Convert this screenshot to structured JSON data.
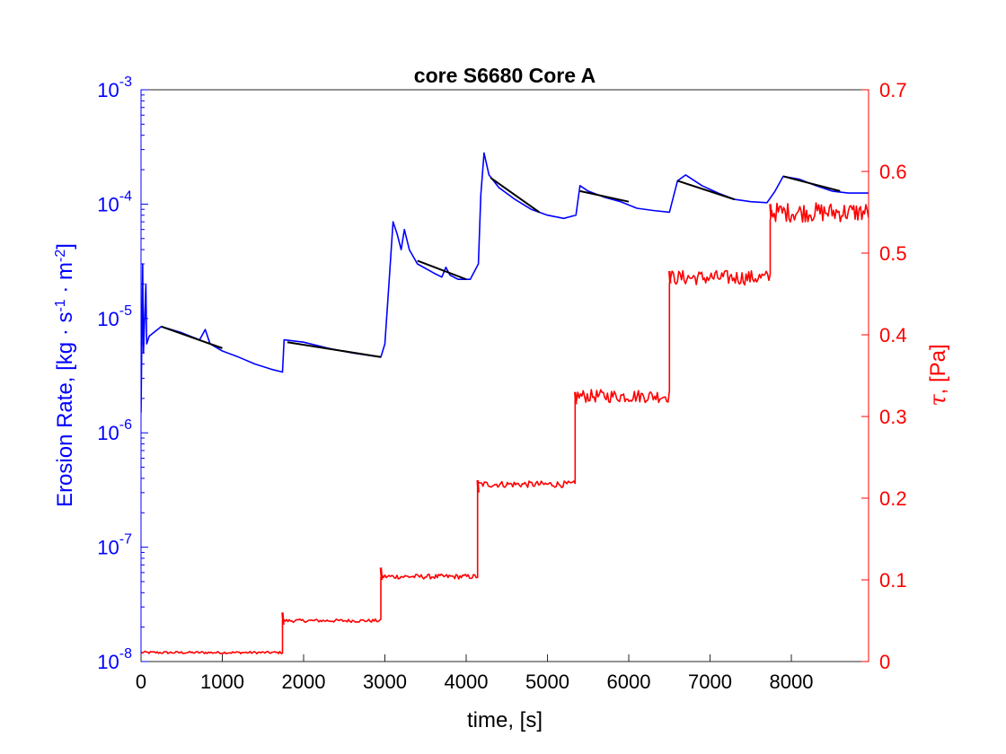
{
  "chart_data": {
    "type": "line",
    "title": "core S6680 Core A",
    "xlabel": "time, [s]",
    "ylabel_left": {
      "main": "Erosion Rate, [kg · s",
      "sup1": "-1",
      "mid": " · m",
      "sup2": "-2",
      "end": "]"
    },
    "ylabel_right": {
      "symbol": "τ",
      "rest": ", [Pa]"
    },
    "xlim": [
      0,
      8950
    ],
    "ylim_left": [
      1e-08,
      0.001
    ],
    "yscale_left": "log",
    "ylim_right": [
      0,
      0.7
    ],
    "x_ticks": [
      "0",
      "1000",
      "2000",
      "3000",
      "4000",
      "5000",
      "6000",
      "7000",
      "8000"
    ],
    "y_left_ticks": [
      {
        "base": "10",
        "exp": "-8"
      },
      {
        "base": "10",
        "exp": "-7"
      },
      {
        "base": "10",
        "exp": "-6"
      },
      {
        "base": "10",
        "exp": "-5"
      },
      {
        "base": "10",
        "exp": "-4"
      },
      {
        "base": "10",
        "exp": "-3"
      }
    ],
    "y_right_ticks": [
      "0",
      "0.1",
      "0.2",
      "0.3",
      "0.4",
      "0.5",
      "0.6",
      "0.7"
    ],
    "colors": {
      "left": "#0000ff",
      "right": "#ff0000",
      "fit": "#000000"
    },
    "series": [
      {
        "axis": "left",
        "color": "#0000ff",
        "points": [
          [
            0,
            1.5e-06
          ],
          [
            20,
            3e-05
          ],
          [
            30,
            5e-06
          ],
          [
            60,
            2e-05
          ],
          [
            70,
            6e-06
          ],
          [
            100,
            7e-06
          ],
          [
            250,
            8.5e-06
          ],
          [
            500,
            7.5e-06
          ],
          [
            720,
            6.5e-06
          ],
          [
            790,
            8e-06
          ],
          [
            850,
            6e-06
          ],
          [
            1000,
            5.2e-06
          ],
          [
            1200,
            4.6e-06
          ],
          [
            1400,
            4e-06
          ],
          [
            1600,
            3.6e-06
          ],
          [
            1740,
            3.4e-06
          ],
          [
            1760,
            6.5e-06
          ],
          [
            2000,
            6.2e-06
          ],
          [
            2300,
            5.5e-06
          ],
          [
            2600,
            5e-06
          ],
          [
            2950,
            4.6e-06
          ],
          [
            3000,
            6e-06
          ],
          [
            3050,
            2e-05
          ],
          [
            3100,
            7e-05
          ],
          [
            3150,
            5.5e-05
          ],
          [
            3200,
            4e-05
          ],
          [
            3240,
            6e-05
          ],
          [
            3300,
            4e-05
          ],
          [
            3400,
            3e-05
          ],
          [
            3600,
            2.5e-05
          ],
          [
            3700,
            2.3e-05
          ],
          [
            3750,
            2.8e-05
          ],
          [
            3800,
            2.4e-05
          ],
          [
            3900,
            2.2e-05
          ],
          [
            4050,
            2.2e-05
          ],
          [
            4150,
            3e-05
          ],
          [
            4180,
            0.00012
          ],
          [
            4220,
            0.00028
          ],
          [
            4280,
            0.00018
          ],
          [
            4400,
            0.00014
          ],
          [
            4600,
            0.00011
          ],
          [
            4800,
            9e-05
          ],
          [
            5000,
            8e-05
          ],
          [
            5200,
            7.5e-05
          ],
          [
            5350,
            8e-05
          ],
          [
            5400,
            0.000145
          ],
          [
            5500,
            0.00013
          ],
          [
            5700,
            0.000115
          ],
          [
            5900,
            0.000105
          ],
          [
            6100,
            9.2e-05
          ],
          [
            6300,
            8.8e-05
          ],
          [
            6500,
            8.5e-05
          ],
          [
            6600,
            0.00016
          ],
          [
            6700,
            0.00018
          ],
          [
            6900,
            0.000145
          ],
          [
            7100,
            0.000125
          ],
          [
            7300,
            0.00011
          ],
          [
            7500,
            0.000105
          ],
          [
            7700,
            0.000103
          ],
          [
            7800,
            0.00013
          ],
          [
            7900,
            0.000175
          ],
          [
            8100,
            0.000165
          ],
          [
            8300,
            0.000145
          ],
          [
            8500,
            0.00013
          ],
          [
            8700,
            0.000125
          ],
          [
            8950,
            0.000125
          ]
        ]
      },
      {
        "axis": "left",
        "color": "#000000",
        "segments": [
          [
            [
              250,
              8.5e-06
            ],
            [
              1000,
              5.5e-06
            ]
          ],
          [
            [
              1800,
              6.2e-06
            ],
            [
              2950,
              4.6e-06
            ]
          ],
          [
            [
              3400,
              3.2e-05
            ],
            [
              4000,
              2.2e-05
            ]
          ],
          [
            [
              4300,
              0.00017
            ],
            [
              4900,
              8.5e-05
            ]
          ],
          [
            [
              5400,
              0.00013
            ],
            [
              6000,
              0.000105
            ]
          ],
          [
            [
              6600,
              0.00016
            ],
            [
              7300,
              0.00011
            ]
          ],
          [
            [
              7900,
              0.000175
            ],
            [
              8600,
              0.00013
            ]
          ]
        ]
      },
      {
        "axis": "right",
        "color": "#ff0000",
        "steps": [
          {
            "x0": 0,
            "x1": 1740,
            "y": 0.011
          },
          {
            "x0": 1740,
            "x1": 2950,
            "y": 0.05
          },
          {
            "x0": 2950,
            "x1": 4140,
            "y": 0.104
          },
          {
            "x0": 4140,
            "x1": 5340,
            "y": 0.217
          },
          {
            "x0": 5340,
            "x1": 6500,
            "y": 0.325
          },
          {
            "x0": 6500,
            "x1": 7740,
            "y": 0.47
          },
          {
            "x0": 7740,
            "x1": 8950,
            "y": 0.55
          }
        ],
        "spikes": [
          {
            "x": 1740,
            "y": 0.06
          },
          {
            "x": 2950,
            "y": 0.115
          },
          {
            "x": 4140,
            "y": 0.222
          },
          {
            "x": 5340,
            "y": 0.33
          },
          {
            "x": 6500,
            "y": 0.478
          },
          {
            "x": 7740,
            "y": 0.56
          }
        ],
        "noise_amplitude": [
          0.0015,
          0.002,
          0.003,
          0.004,
          0.008,
          0.009,
          0.012
        ]
      }
    ]
  }
}
